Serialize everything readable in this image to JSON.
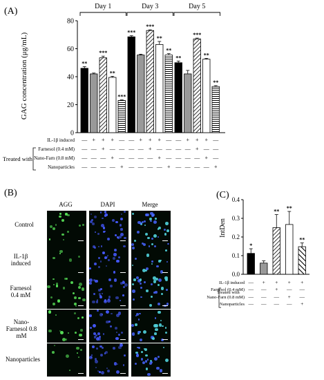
{
  "panelA": {
    "letter": "(A)",
    "ylabel": "GAG concentration (μg/mL)",
    "groups": [
      "Day 1",
      "Day 3",
      "Day 5"
    ],
    "row_labels": [
      "IL-1β induced",
      "Farnesol (0.4 mM)",
      "Nano-Farn (0.8 mM)",
      "Nanoparticles"
    ],
    "treated_label": "Treated with"
  },
  "panelB": {
    "letter": "(B)",
    "columns": [
      "AGG",
      "DAPI",
      "Merge"
    ],
    "rows": [
      "Control",
      "IL-1β induced",
      "Farnesol 0.4 mM",
      "Nano- Farnesol 0.8 mM",
      "Nanoparticles"
    ]
  },
  "panelC": {
    "letter": "(C)",
    "ylabel": "IntDen",
    "row_labels": [
      "IL-1β induced",
      "Farnesol (0.4 mM)",
      "Nano-Farn (0.8 mM)",
      "Nanoparticles"
    ],
    "treated_label": "Treated with"
  },
  "chart_data": [
    {
      "type": "bar",
      "panel": "A",
      "ylabel": "GAG concentration (μg/mL)",
      "ylim": [
        0,
        80
      ],
      "yticks": [
        0,
        20,
        40,
        60,
        80
      ],
      "groups": [
        {
          "name": "Day 1",
          "bars": [
            {
              "value": 46,
              "err": 1.2,
              "sig": "**",
              "pattern": "black"
            },
            {
              "value": 42,
              "err": 0.6,
              "sig": "",
              "pattern": "gray"
            },
            {
              "value": 53.5,
              "err": 1.2,
              "sig": "***",
              "pattern": "diag"
            },
            {
              "value": 39.5,
              "err": 0.8,
              "sig": "**",
              "pattern": "white"
            },
            {
              "value": 23,
              "err": 0.4,
              "sig": "***",
              "pattern": "hline"
            }
          ]
        },
        {
          "name": "Day 3",
          "bars": [
            {
              "value": 68.5,
              "err": 0.8,
              "sig": "***",
              "pattern": "black"
            },
            {
              "value": 55.5,
              "err": 0.6,
              "sig": "",
              "pattern": "gray"
            },
            {
              "value": 73,
              "err": 0.5,
              "sig": "***",
              "pattern": "diag"
            },
            {
              "value": 63,
              "err": 2.2,
              "sig": "**",
              "pattern": "white"
            },
            {
              "value": 55.5,
              "err": 1.0,
              "sig": "**",
              "pattern": "hline"
            }
          ]
        },
        {
          "name": "Day 5",
          "bars": [
            {
              "value": 50,
              "err": 1.2,
              "sig": "**",
              "pattern": "black"
            },
            {
              "value": 42,
              "err": 2.5,
              "sig": "",
              "pattern": "gray"
            },
            {
              "value": 67,
              "err": 0.6,
              "sig": "***",
              "pattern": "diag"
            },
            {
              "value": 52.5,
              "err": 0.6,
              "sig": "**",
              "pattern": "white"
            },
            {
              "value": 33,
              "err": 0.6,
              "sig": "**",
              "pattern": "hline"
            }
          ]
        }
      ],
      "signs": [
        [
          "-",
          "+",
          "+",
          "+",
          "-"
        ],
        [
          "-",
          "-",
          "+",
          "-",
          "-"
        ],
        [
          "-",
          "-",
          "-",
          "+",
          "-"
        ],
        [
          "-",
          "-",
          "-",
          "-",
          "+"
        ]
      ]
    },
    {
      "type": "bar",
      "panel": "C",
      "ylabel": "IntDen",
      "ylim": [
        0,
        0.4
      ],
      "yticks": [
        "0.0",
        "0.1",
        "0.2",
        "0.3",
        "0.4"
      ],
      "bars": [
        {
          "value": 0.112,
          "err": 0.025,
          "sig": "*",
          "pattern": "black"
        },
        {
          "value": 0.06,
          "err": 0.012,
          "sig": "",
          "pattern": "gray"
        },
        {
          "value": 0.25,
          "err": 0.07,
          "sig": "**",
          "pattern": "diag"
        },
        {
          "value": 0.267,
          "err": 0.07,
          "sig": "**",
          "pattern": "white"
        },
        {
          "value": 0.148,
          "err": 0.02,
          "sig": "**",
          "pattern": "diag2"
        }
      ],
      "signs": [
        [
          "-",
          "+",
          "+",
          "+",
          "+"
        ],
        [
          "-",
          "-",
          "+",
          "-",
          "-"
        ],
        [
          "-",
          "-",
          "-",
          "+",
          "-"
        ],
        [
          "-",
          "-",
          "-",
          "-",
          "+"
        ]
      ]
    }
  ]
}
